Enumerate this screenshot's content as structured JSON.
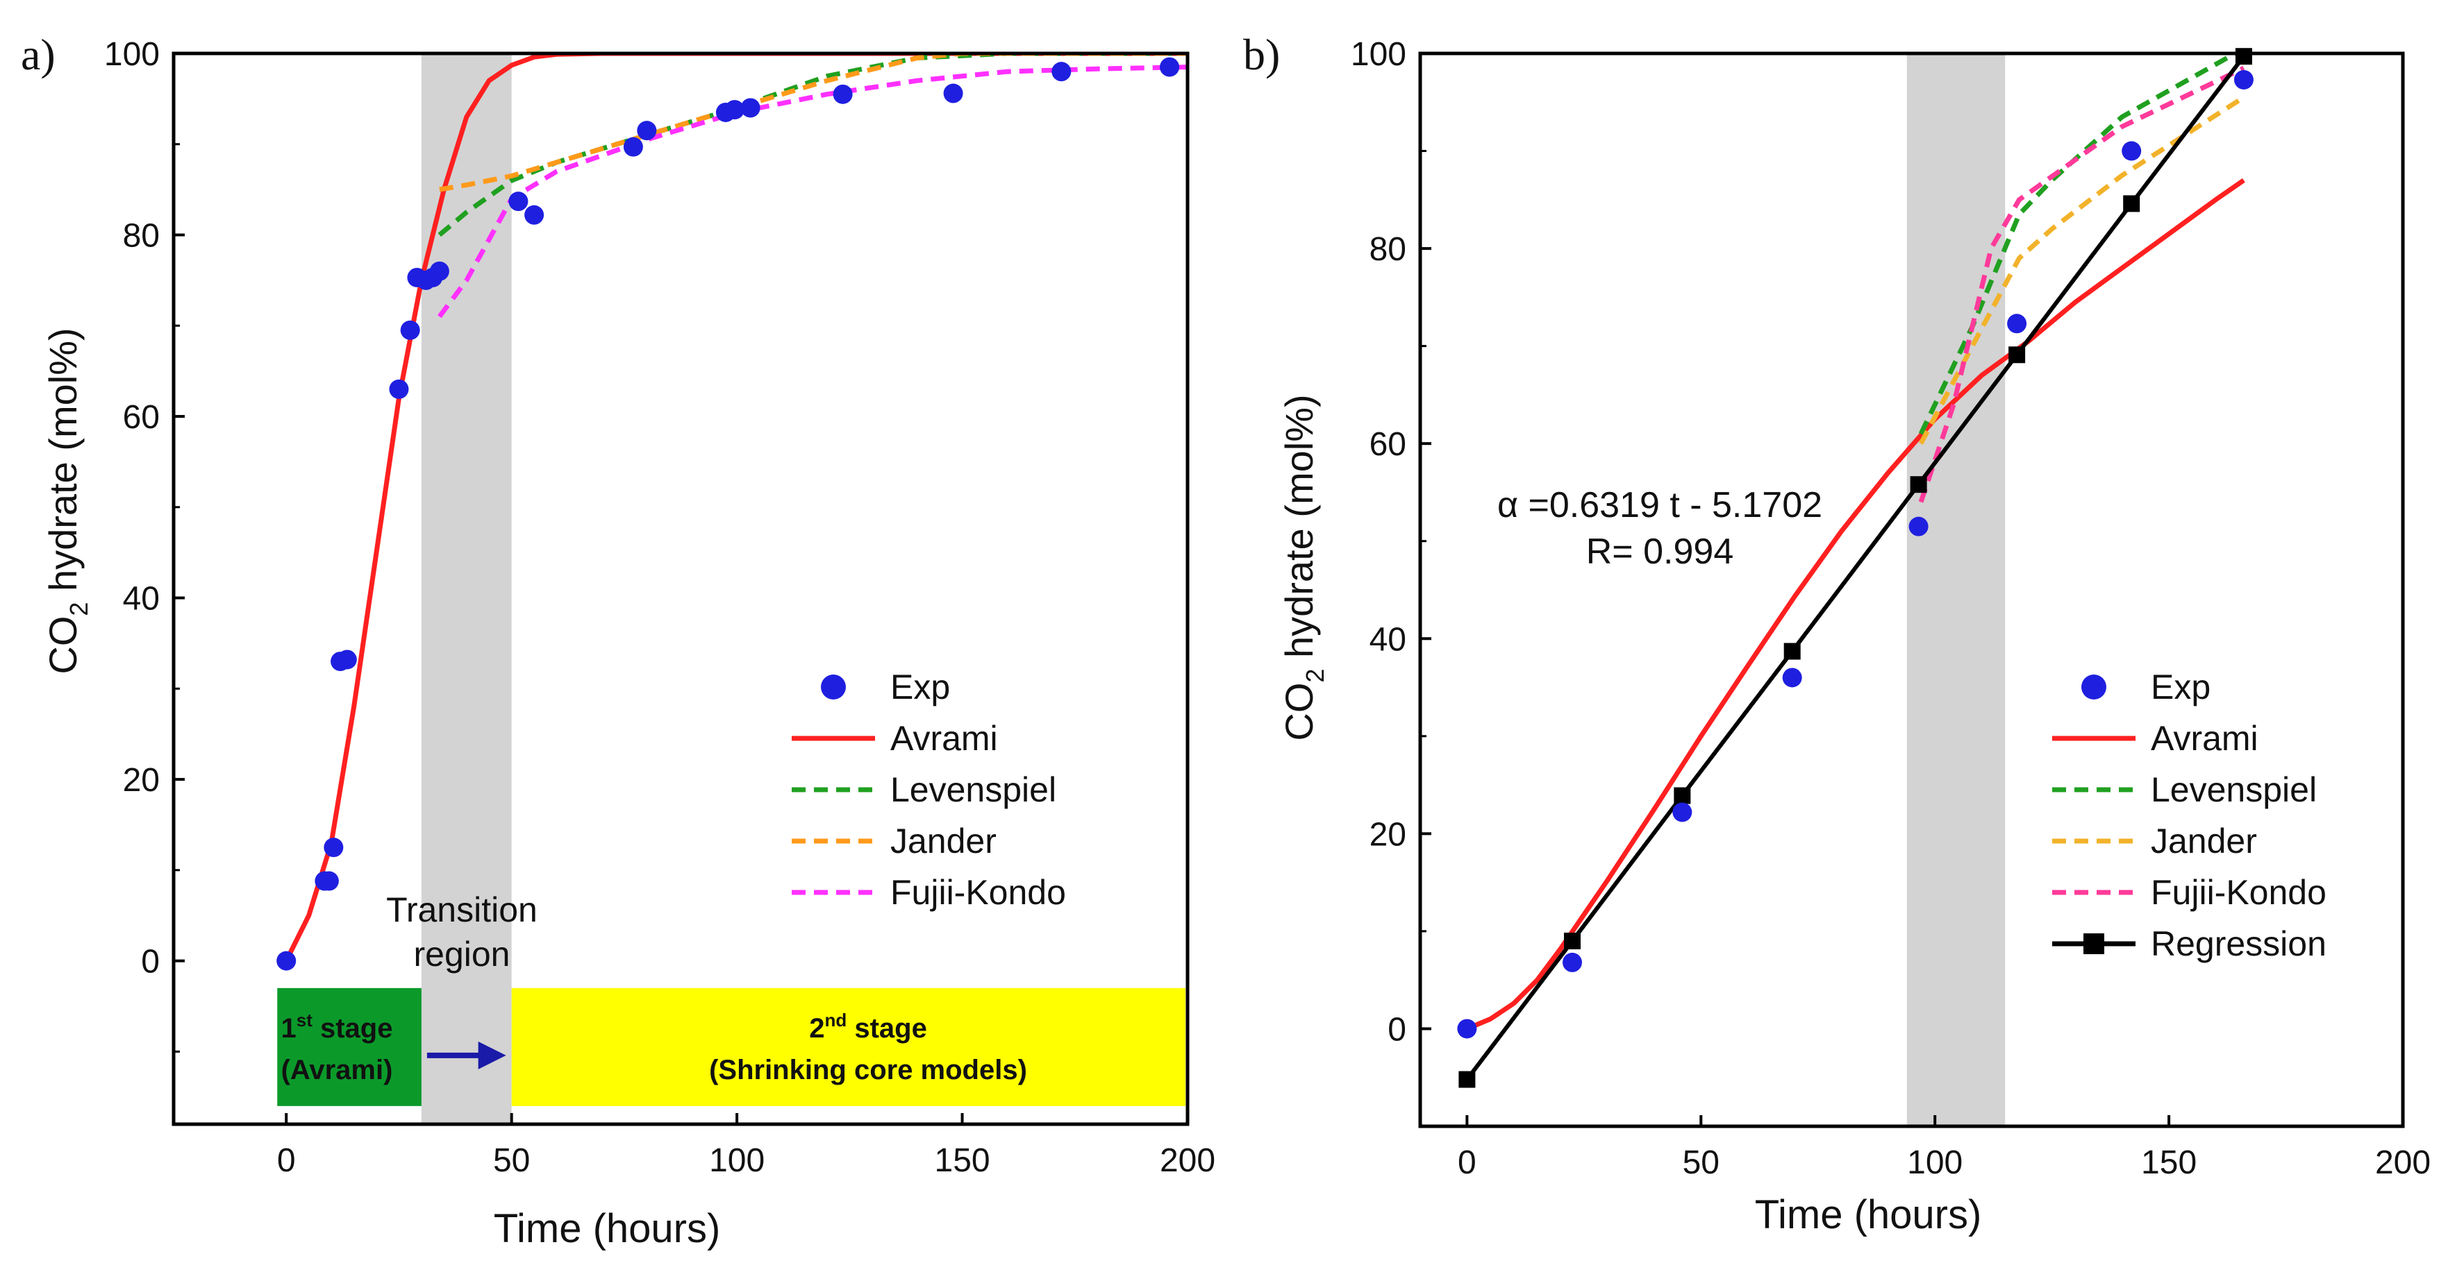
{
  "chart_data": [
    {
      "panel_label": "a)",
      "type": "line",
      "xlabel": "Time (hours)",
      "ylabel_main": "CO",
      "ylabel_sub": "2",
      "ylabel_rest": " hydrate (mol%)",
      "xlim": [
        -25,
        200
      ],
      "ylim": [
        -18,
        100
      ],
      "xticks": [
        0,
        50,
        100,
        150,
        200
      ],
      "yticks": [
        0,
        20,
        40,
        60,
        80,
        100
      ],
      "shaded_region": [
        30,
        50
      ],
      "series": [
        {
          "name": "Exp",
          "kind": "scatter",
          "color": "#1f1fe0",
          "points": [
            [
              0,
              0
            ],
            [
              8.5,
              8.8
            ],
            [
              9.5,
              8.8
            ],
            [
              10.5,
              12.5
            ],
            [
              12,
              33
            ],
            [
              13.5,
              33.2
            ],
            [
              25,
              63
            ],
            [
              27.5,
              69.5
            ],
            [
              29,
              75.3
            ],
            [
              31,
              75
            ],
            [
              32.5,
              75.3
            ],
            [
              34,
              76
            ],
            [
              51.5,
              83.7
            ],
            [
              55,
              82.2
            ],
            [
              77,
              89.7
            ],
            [
              80,
              91.5
            ],
            [
              97.5,
              93.5
            ],
            [
              99.5,
              93.8
            ],
            [
              103,
              94
            ],
            [
              123.5,
              95.5
            ],
            [
              148,
              95.6
            ],
            [
              172,
              98
            ],
            [
              196,
              98.5
            ]
          ]
        },
        {
          "name": "Avrami",
          "kind": "line",
          "color": "#ff2020",
          "dash": "solid",
          "points": [
            [
              0,
              0
            ],
            [
              5,
              5
            ],
            [
              10,
              13
            ],
            [
              15,
              28
            ],
            [
              20,
              45
            ],
            [
              25,
              62
            ],
            [
              30,
              75
            ],
            [
              35,
              85
            ],
            [
              40,
              93
            ],
            [
              45,
              97
            ],
            [
              50,
              98.7
            ],
            [
              55,
              99.6
            ],
            [
              60,
              99.9
            ],
            [
              70,
              100
            ],
            [
              100,
              100
            ],
            [
              150,
              100
            ],
            [
              200,
              100
            ]
          ]
        },
        {
          "name": "Levenspiel",
          "kind": "line",
          "color": "#20a020",
          "dash": "dashed",
          "points": [
            [
              34,
              80
            ],
            [
              40,
              82.5
            ],
            [
              50,
              86
            ],
            [
              60,
              88
            ],
            [
              80,
              91
            ],
            [
              100,
              94
            ],
            [
              120,
              97.5
            ],
            [
              140,
              99.5
            ],
            [
              160,
              100
            ],
            [
              200,
              100
            ]
          ]
        },
        {
          "name": "Jander",
          "kind": "line",
          "color": "#ff9a1a",
          "dash": "dashed",
          "points": [
            [
              34,
              85
            ],
            [
              40,
              85.5
            ],
            [
              50,
              86.5
            ],
            [
              60,
              88
            ],
            [
              80,
              91
            ],
            [
              100,
              94
            ],
            [
              120,
              97
            ],
            [
              140,
              99.5
            ],
            [
              150,
              100
            ],
            [
              200,
              100
            ]
          ]
        },
        {
          "name": "Fujii-Kondo",
          "kind": "line",
          "color": "#ff30ff",
          "dash": "dashed",
          "points": [
            [
              34,
              71
            ],
            [
              40,
              75
            ],
            [
              50,
              84
            ],
            [
              60,
              87
            ],
            [
              80,
              90.5
            ],
            [
              100,
              93.5
            ],
            [
              120,
              95.5
            ],
            [
              140,
              97
            ],
            [
              160,
              98
            ],
            [
              180,
              98.3
            ],
            [
              200,
              98.5
            ]
          ]
        }
      ],
      "legend": [
        "Exp",
        "Avrami",
        "Levenspiel",
        "Jander",
        "Fujii-Kondo"
      ],
      "annotations": {
        "transition_line1": "Transition",
        "transition_line2": "region",
        "stage1_line1_pre": "1",
        "stage1_line1_sup": "st",
        "stage1_line1_post": " stage",
        "stage1_line2": "(Avrami)",
        "stage2_line1_pre": "2",
        "stage2_line1_sup": "nd",
        "stage2_line1_post": " stage",
        "stage2_line2": "(Shrinking core models)",
        "stage1_color": "#0b9a2a",
        "stage2_color": "#ffff00",
        "arrow_color": "#1a1aa8",
        "stage1_box_x": [
          -2,
          30
        ],
        "stage2_box_x": [
          50,
          200
        ],
        "stage_box_y": [
          -16,
          -3
        ]
      }
    },
    {
      "panel_label": "b)",
      "type": "line",
      "xlabel": "Time (hours)",
      "ylabel_main": "CO",
      "ylabel_sub": "2",
      "ylabel_rest": " hydrate (mol%)",
      "xlim": [
        -10,
        200
      ],
      "ylim": [
        -10,
        100
      ],
      "xticks": [
        0,
        50,
        100,
        150,
        200
      ],
      "yticks": [
        0,
        20,
        40,
        60,
        80,
        100
      ],
      "shaded_region": [
        94,
        115
      ],
      "series": [
        {
          "name": "Exp",
          "kind": "scatter",
          "color": "#1f1fe0",
          "points": [
            [
              0,
              0
            ],
            [
              22.5,
              6.8
            ],
            [
              46,
              22.2
            ],
            [
              69.5,
              36
            ],
            [
              96.5,
              51.5
            ],
            [
              117.5,
              72.3
            ],
            [
              142,
              90
            ],
            [
              166,
              97.3
            ]
          ]
        },
        {
          "name": "Avrami",
          "kind": "line",
          "color": "#ff2020",
          "dash": "solid",
          "points": [
            [
              0,
              0
            ],
            [
              5,
              1
            ],
            [
              10,
              2.6
            ],
            [
              15,
              5
            ],
            [
              20,
              8.2
            ],
            [
              30,
              15.2
            ],
            [
              40,
              22.5
            ],
            [
              50,
              30
            ],
            [
              60,
              37.2
            ],
            [
              70,
              44.3
            ],
            [
              80,
              51
            ],
            [
              90,
              57
            ],
            [
              100,
              62.5
            ],
            [
              110,
              67
            ],
            [
              120,
              70.5
            ],
            [
              130,
              74.5
            ],
            [
              140,
              78
            ],
            [
              150,
              81.5
            ],
            [
              160,
              85
            ],
            [
              166,
              87
            ]
          ]
        },
        {
          "name": "Levenspiel",
          "kind": "line",
          "color": "#20a020",
          "dash": "dashed",
          "points": [
            [
              97,
              61
            ],
            [
              108,
              72
            ],
            [
              118,
              83.5
            ],
            [
              125,
              87
            ],
            [
              140,
              93.5
            ],
            [
              166,
              100.5
            ]
          ]
        },
        {
          "name": "Jander",
          "kind": "line",
          "color": "#f2b22a",
          "dash": "dashed",
          "points": [
            [
              97,
              60
            ],
            [
              108,
              70
            ],
            [
              118,
              79
            ],
            [
              125,
              82
            ],
            [
              140,
              87.5
            ],
            [
              166,
              95.5
            ]
          ]
        },
        {
          "name": "Fujii-Kondo",
          "kind": "line",
          "color": "#ff3a9a",
          "dash": "dashed",
          "points": [
            [
              97,
              54
            ],
            [
              104,
              64
            ],
            [
              112,
              80
            ],
            [
              118,
              85
            ],
            [
              140,
              92.5
            ],
            [
              166,
              98.5
            ]
          ]
        },
        {
          "name": "Regression",
          "kind": "linemarker",
          "color": "#000000",
          "dash": "solid",
          "points": [
            [
              0,
              -5.2
            ],
            [
              22.5,
              9
            ],
            [
              46,
              23.9
            ],
            [
              69.5,
              38.7
            ],
            [
              96.5,
              55.8
            ],
            [
              117.5,
              69.1
            ],
            [
              142,
              84.6
            ],
            [
              166,
              99.7
            ]
          ]
        }
      ],
      "legend": [
        "Exp",
        "Avrami",
        "Levenspiel",
        "Jander",
        "Fujii-Kondo",
        "Regression"
      ],
      "annotations": {
        "equation": "α =0.6319 t - 5.1702",
        "r_value": "R= 0.994"
      }
    }
  ]
}
